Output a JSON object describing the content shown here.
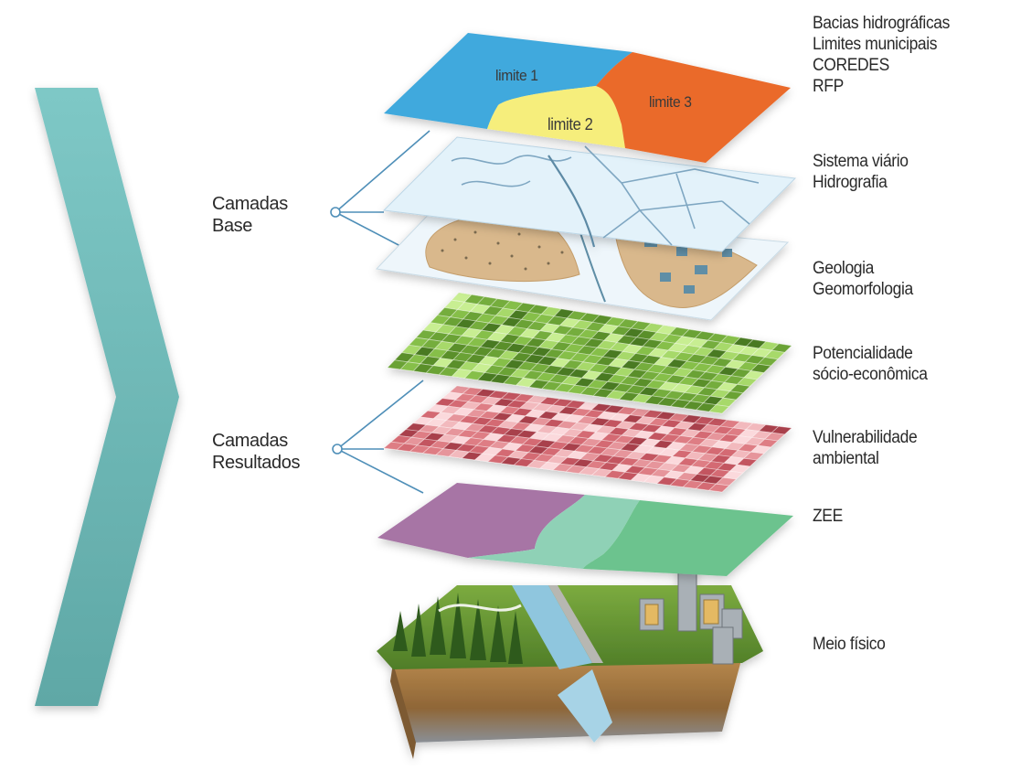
{
  "chevron": {
    "icon": "chevron-right-icon",
    "color_top": "#7ec8c6",
    "color_bottom": "#5fa8a6"
  },
  "groups": {
    "base": {
      "line1": "Camadas",
      "line2": "Base"
    },
    "resultados": {
      "line1": "Camadas",
      "line2": "Resultados"
    }
  },
  "map_labels": {
    "limite1": "limite 1",
    "limite2": "limite 2",
    "limite3": "limite 3"
  },
  "layers": [
    {
      "name": "limits",
      "lines": [
        "Bacias hidrográficas",
        "Limites municipais",
        "COREDES",
        "RFP"
      ]
    },
    {
      "name": "roads",
      "lines": [
        "Sistema viário",
        "Hidrografia"
      ]
    },
    {
      "name": "geology",
      "lines": [
        "Geologia",
        "Geomorfologia"
      ]
    },
    {
      "name": "potential",
      "lines": [
        "Potencialidade",
        "sócio-econômica"
      ]
    },
    {
      "name": "vulnerability",
      "lines": [
        "Vulnerabilidade",
        "ambiental"
      ]
    },
    {
      "name": "zee",
      "lines": [
        "ZEE"
      ]
    },
    {
      "name": "terrain",
      "lines": [
        "Meio físico"
      ]
    }
  ],
  "colors": {
    "limite1": "#3fa9dd",
    "limite2": "#f6ee7c",
    "limite3": "#ea6a2a",
    "green_grid": "#6ea83a",
    "red_grid": "#d9737a",
    "zee_purple": "#a774a5",
    "zee_mint": "#8fd1b6",
    "zee_green": "#6cc38e"
  }
}
